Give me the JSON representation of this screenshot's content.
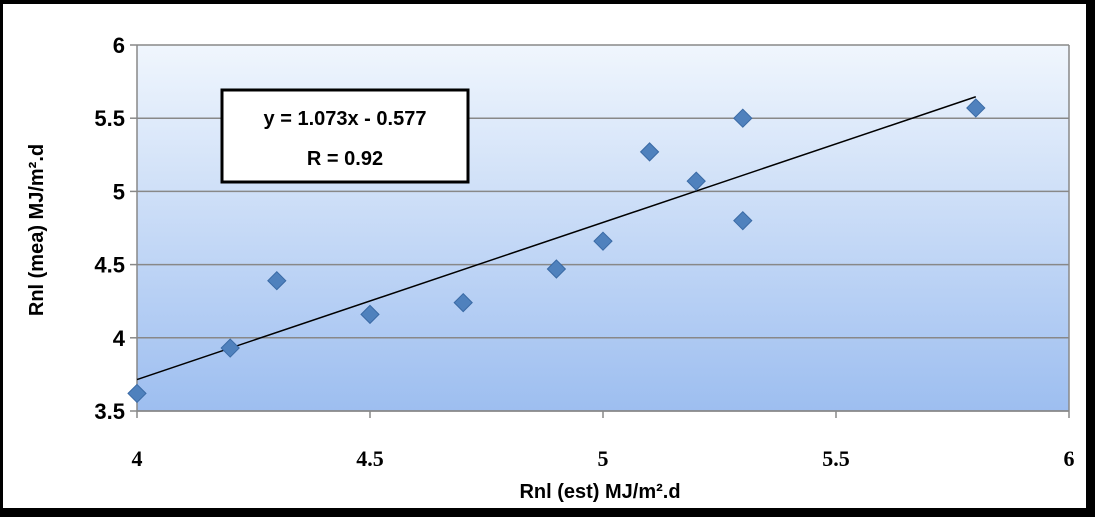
{
  "chart_data": {
    "type": "scatter",
    "title": "",
    "xlabel": "Rnl (est) MJ/m².d",
    "ylabel": "Rnl (mea) MJ/m².d",
    "xlim": [
      4,
      6
    ],
    "ylim": [
      3.5,
      6
    ],
    "x_ticks": [
      "4",
      "4.5",
      "5",
      "5.5",
      "6"
    ],
    "y_ticks": [
      "3.5",
      "4",
      "4.5",
      "5",
      "5.5",
      "6"
    ],
    "grid": "horizontal",
    "legend": "none",
    "series": [
      {
        "x": [
          4.0,
          4.2,
          4.3,
          4.5,
          4.7,
          4.9,
          5.0,
          5.1,
          5.2,
          5.3,
          5.3,
          5.8
        ],
        "y": [
          3.62,
          3.93,
          4.39,
          4.16,
          4.24,
          4.47,
          4.66,
          5.27,
          5.07,
          5.5,
          4.8,
          5.57
        ],
        "marker": "diamond",
        "color": "#4f81bd"
      }
    ],
    "trendline": {
      "equation": "y = 1.073x - 0.577",
      "r_text": "R = 0.92",
      "slope": 1.073,
      "intercept": -0.577,
      "x_range": [
        4.0,
        5.8
      ],
      "color": "#000000"
    },
    "colors": {
      "plot_bg_top": "#f0f6fd",
      "plot_bg_bottom": "#9dbef0",
      "gridline": "#888888",
      "marker": "#4f81bd"
    }
  }
}
